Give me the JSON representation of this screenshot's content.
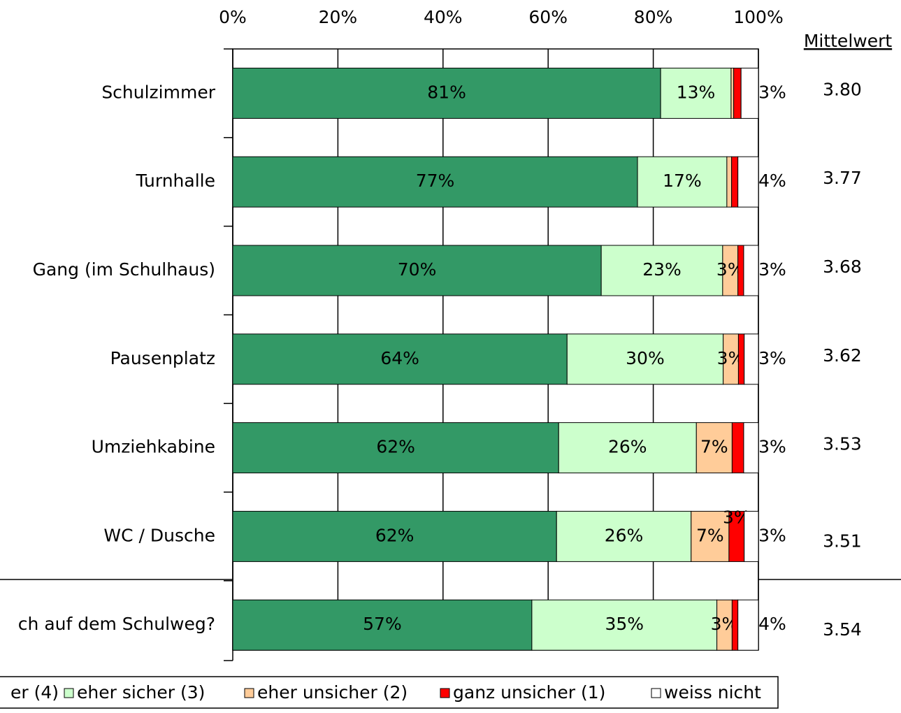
{
  "chart_data": {
    "type": "stacked_bar_horizontal",
    "categories": [
      "Schulzimmer",
      "Turnhalle",
      "Gang (im Schulhaus)",
      "Pausenplatz",
      "Umziehkabine",
      "WC / Dusche",
      "ch auf dem Schulweg?"
    ],
    "series": [
      {
        "name": "er (4)",
        "color": "#339966",
        "values": [
          81.4,
          77.0,
          70.1,
          63.6,
          62.0,
          61.6,
          56.9
        ],
        "value_labels": [
          "81%",
          "77%",
          "70%",
          "64%",
          "62%",
          "62%",
          "57%"
        ]
      },
      {
        "name": "eher sicher (3)",
        "color": "#ccffcc",
        "values": [
          13.4,
          17.0,
          23.1,
          29.7,
          26.2,
          25.6,
          35.2
        ],
        "value_labels": [
          "13%",
          "17%",
          "23%",
          "30%",
          "26%",
          "26%",
          "35%"
        ]
      },
      {
        "name": "eher unsicher (2)",
        "color": "#ffcc99",
        "values": [
          0.5,
          0.9,
          2.9,
          2.9,
          6.8,
          7.2,
          2.9
        ],
        "value_labels": [
          null,
          null,
          "3%",
          "3%",
          "7%",
          "7%",
          "3%"
        ]
      },
      {
        "name": "ganz unsicher (1)",
        "color": "#ff0000",
        "values": [
          1.4,
          1.2,
          1.1,
          1.1,
          2.2,
          2.9,
          1.1
        ],
        "value_labels": [
          null,
          null,
          null,
          null,
          null,
          "3%",
          null
        ]
      },
      {
        "name": "weiss nicht",
        "color": "#ffffff",
        "values": [
          3.3,
          3.9,
          2.8,
          2.7,
          2.8,
          2.7,
          3.9
        ],
        "value_labels": [
          "3%",
          "4%",
          "3%",
          "3%",
          "3%",
          "3%",
          "4%"
        ]
      }
    ],
    "xlim": [
      0,
      100
    ],
    "xticks": [
      {
        "value": 0,
        "label": "0%"
      },
      {
        "value": 20,
        "label": "20%"
      },
      {
        "value": 40,
        "label": "40%"
      },
      {
        "value": 60,
        "label": "60%"
      },
      {
        "value": 80,
        "label": "80%"
      },
      {
        "value": 100,
        "label": "100%"
      }
    ],
    "grid": true,
    "mean_title": "Mittelwert",
    "means": [
      {
        "value": 3.8,
        "label": "3.80"
      },
      {
        "value": 3.77,
        "label": "3.77"
      },
      {
        "value": 3.68,
        "label": "3.68"
      },
      {
        "value": 3.62,
        "label": "3.62"
      },
      {
        "value": 3.53,
        "label": "3.53"
      },
      {
        "value": 3.51,
        "label": "3.51"
      },
      {
        "value": 3.54,
        "label": "3.54"
      }
    ]
  }
}
